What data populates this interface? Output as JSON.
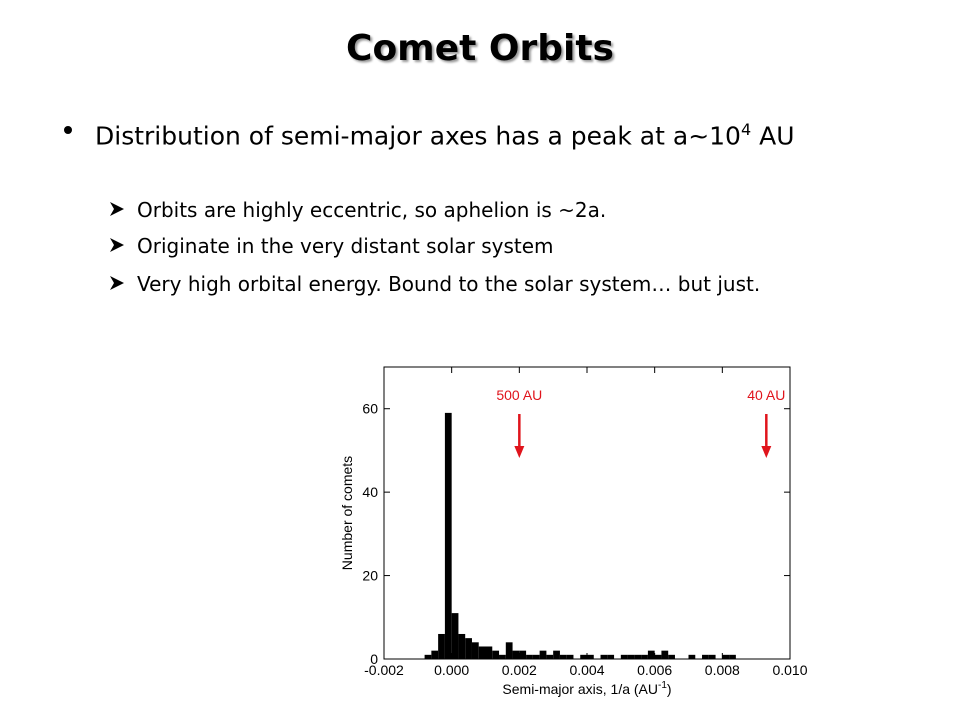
{
  "slide": {
    "title": "Comet Orbits",
    "bullet": [
      "Distribution of semi-major axes has a peak at a~10",
      "4",
      " AU"
    ],
    "sub_bullets": [
      "Orbits are highly eccentric, so aphelion is ~2a.",
      "Originate in the very distant solar system",
      "Very high orbital energy.  Bound to the solar system… but just."
    ]
  },
  "chart_data": {
    "type": "histogram",
    "xlabel": [
      "Semi-major axis, 1/a (AU",
      "-1",
      ")"
    ],
    "ylabel": "Number of comets",
    "color": "#000000",
    "bins": [
      -0.0008,
      -0.0006,
      -0.0004,
      -0.0002,
      0,
      0.0002,
      0.0004,
      0.0006,
      0.0008,
      0.001,
      0.0012,
      0.0014,
      0.0016,
      0.0018,
      0.002,
      0.0022,
      0.0024,
      0.0026,
      0.0028,
      0.003,
      0.0032,
      0.0034,
      0.0036,
      0.0038,
      0.004,
      0.0042,
      0.0044,
      0.0046,
      0.0048,
      0.005,
      0.0052,
      0.0054,
      0.0056,
      0.0058,
      0.006,
      0.0062,
      0.0064,
      0.0066,
      0.0068,
      0.007,
      0.0072,
      0.0074,
      0.0076,
      0.0078,
      0.008,
      0.0082,
      0.0084
    ],
    "values": [
      1,
      2,
      6,
      59,
      11,
      6,
      5,
      4,
      3,
      3,
      2,
      1,
      4,
      2,
      2,
      1,
      1,
      2,
      1,
      2,
      1,
      1,
      0,
      1,
      1,
      0,
      1,
      1,
      0,
      1,
      1,
      1,
      1,
      2,
      1,
      2,
      1,
      0,
      0,
      1,
      0,
      1,
      1,
      0,
      1,
      1
    ],
    "xlim": [
      -0.002,
      0.01
    ],
    "ylim": [
      0,
      70
    ],
    "xticks": [
      {
        "value": -0.002,
        "label": "-0.002"
      },
      {
        "value": 0,
        "label": "0.000"
      },
      {
        "value": 0.002,
        "label": "0.002"
      },
      {
        "value": 0.004,
        "label": "0.004"
      },
      {
        "value": 0.006,
        "label": "0.006"
      },
      {
        "value": 0.008,
        "label": "0.008"
      },
      {
        "value": 0.01,
        "label": "0.010"
      }
    ],
    "yticks": [
      0,
      20,
      40,
      60
    ],
    "annotations": [
      {
        "text": "500 AU",
        "x": 0.002,
        "color": "#e0141c"
      },
      {
        "text": "40 AU",
        "x": 0.0093,
        "color": "#e0141c"
      }
    ]
  }
}
